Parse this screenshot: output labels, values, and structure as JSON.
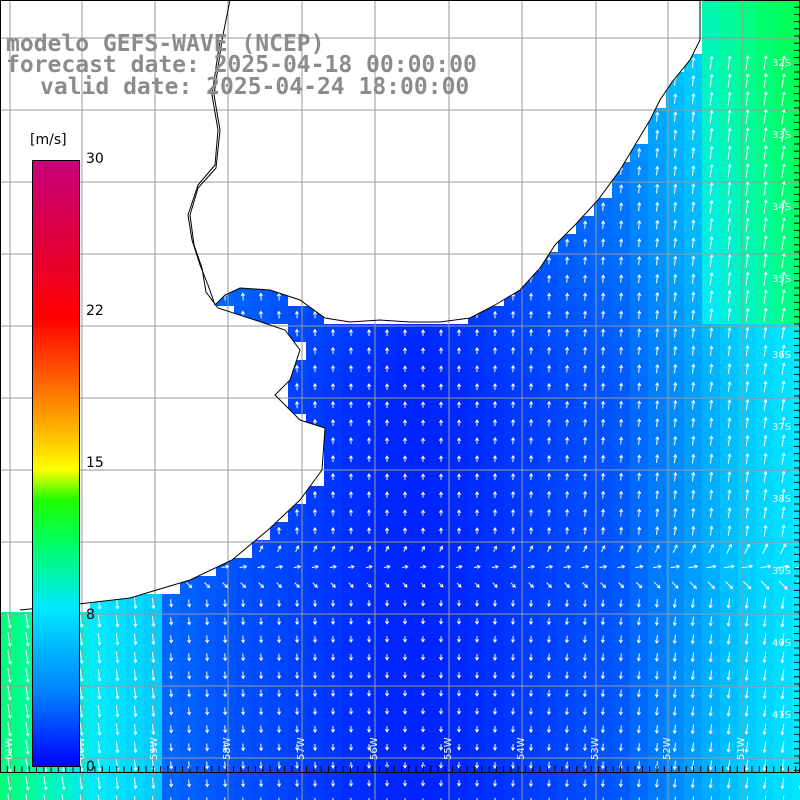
{
  "title": {
    "line1": "modelo GEFS-WAVE (NCEP)",
    "line2": "forecast date: 2025-04-18 00:00:00",
    "line3": "valid date: 2025-04-24 18:00:00"
  },
  "colorbar": {
    "unit": "[m/s]",
    "ticks": [
      "30",
      "22",
      "15",
      "8",
      "0"
    ],
    "min": 0,
    "max": 30,
    "colors": [
      "#0000ff",
      "#0080ff",
      "#00e8ff",
      "#00ff60",
      "#ffff00",
      "#ff6000",
      "#ff0000",
      "#c8007a"
    ]
  },
  "lat_labels": [
    "32S",
    "33S",
    "34S",
    "35S",
    "36S",
    "37S",
    "38S",
    "39S",
    "40S",
    "41S"
  ],
  "lon_labels": [
    "61W",
    "60W",
    "59W",
    "58W",
    "57W",
    "56W",
    "55W",
    "54W",
    "53W",
    "52W",
    "51W"
  ],
  "colors": {
    "land": "#ffffff",
    "coastline": "#000000",
    "gridline": "#9a9a9a",
    "arrows": "#ffffff",
    "title_text": "#8c8c8c"
  }
}
